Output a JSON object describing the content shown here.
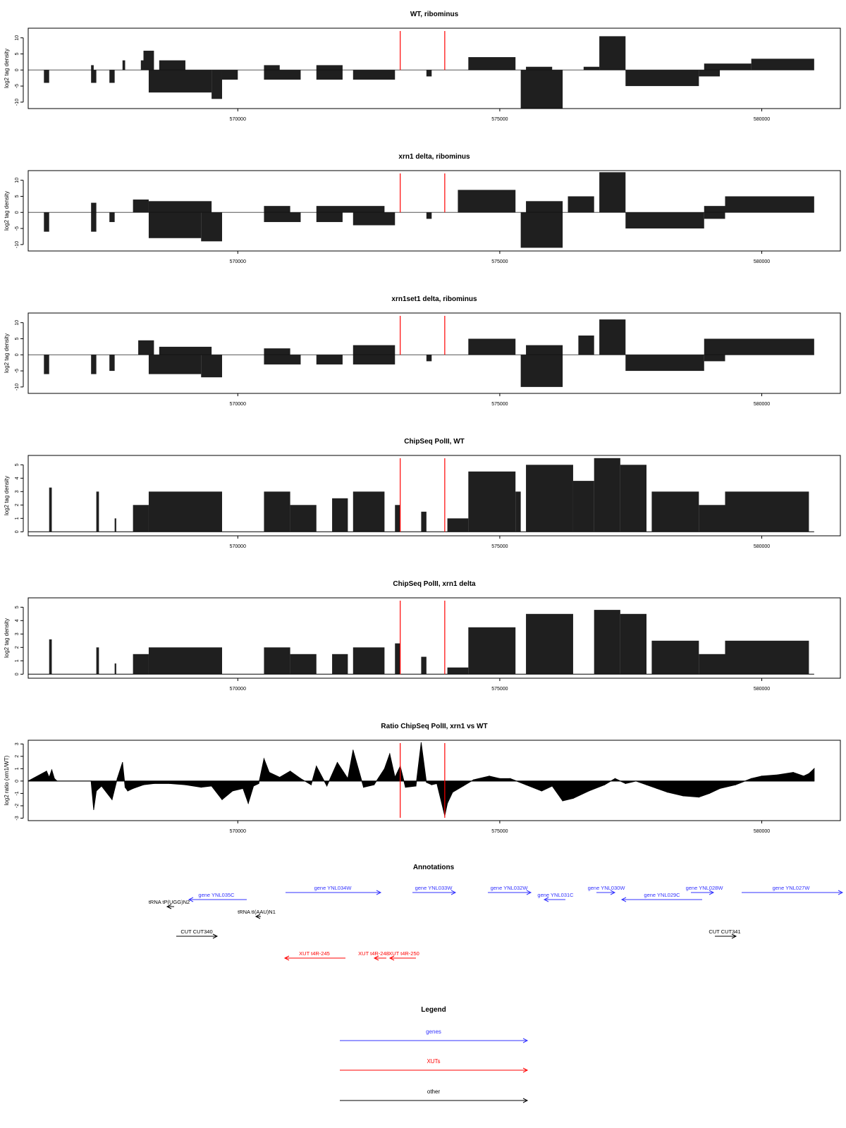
{
  "chart_data": [
    {
      "type": "bar",
      "title": "WT, ribominus",
      "ylabel": "log2 tag density",
      "xlim": [
        566000,
        581500
      ],
      "ylim": [
        -12,
        13
      ],
      "yticks": [
        -10,
        -5,
        0,
        5,
        10
      ],
      "xticks": [
        570000,
        575000,
        580000
      ],
      "xtick_labels": [
        "570000",
        "575000",
        "580000"
      ],
      "markers": [
        573100,
        573950
      ],
      "plus_segments": [
        [
          567200,
          567250,
          1.5
        ],
        [
          567800,
          567850,
          3
        ],
        [
          568150,
          568200,
          3
        ],
        [
          568200,
          568400,
          6
        ],
        [
          568500,
          569000,
          3
        ],
        [
          570500,
          570800,
          1.5
        ],
        [
          571500,
          572000,
          1.5
        ],
        [
          574400,
          575300,
          4
        ],
        [
          575500,
          576000,
          1
        ],
        [
          576600,
          576900,
          1
        ],
        [
          576900,
          577400,
          10.5
        ],
        [
          578900,
          579800,
          2
        ],
        [
          579800,
          581000,
          3.5
        ]
      ],
      "minus_segments": [
        [
          566300,
          566400,
          -4
        ],
        [
          567200,
          567300,
          -4
        ],
        [
          567550,
          567650,
          -4
        ],
        [
          568300,
          569500,
          -7
        ],
        [
          569500,
          569700,
          -9
        ],
        [
          569700,
          570000,
          -3
        ],
        [
          570500,
          571200,
          -3
        ],
        [
          571500,
          572000,
          -3
        ],
        [
          572200,
          573000,
          -3
        ],
        [
          573600,
          573700,
          -2
        ],
        [
          575400,
          576200,
          -12
        ],
        [
          577400,
          578800,
          -5
        ],
        [
          578800,
          579200,
          -2
        ]
      ],
      "colors": {
        "series": "#000000",
        "marker": "#ff0000",
        "zero_line": "#555555"
      }
    },
    {
      "type": "bar",
      "title": "xrn1 delta, ribominus",
      "ylabel": "log2 tag density",
      "xlim": [
        566000,
        581500
      ],
      "ylim": [
        -12,
        13
      ],
      "yticks": [
        -10,
        -5,
        0,
        5,
        10
      ],
      "xticks": [
        570000,
        575000,
        580000
      ],
      "xtick_labels": [
        "570000",
        "575000",
        "580000"
      ],
      "markers": [
        573100,
        573950
      ],
      "plus_segments": [
        [
          567200,
          567300,
          3
        ],
        [
          568000,
          568300,
          4
        ],
        [
          568300,
          569500,
          3.5
        ],
        [
          570500,
          571000,
          2
        ],
        [
          571500,
          572800,
          2
        ],
        [
          574200,
          575300,
          7
        ],
        [
          575500,
          576200,
          3.5
        ],
        [
          576300,
          576800,
          5
        ],
        [
          576900,
          577400,
          12.5
        ],
        [
          578900,
          579300,
          2
        ],
        [
          579300,
          581000,
          5
        ]
      ],
      "minus_segments": [
        [
          566300,
          566400,
          -6
        ],
        [
          567200,
          567300,
          -6
        ],
        [
          567550,
          567650,
          -3
        ],
        [
          568300,
          569300,
          -8
        ],
        [
          569300,
          569700,
          -9
        ],
        [
          570500,
          571200,
          -3
        ],
        [
          571500,
          572000,
          -3
        ],
        [
          572200,
          573000,
          -4
        ],
        [
          573600,
          573700,
          -2
        ],
        [
          575400,
          576200,
          -11
        ],
        [
          577400,
          578900,
          -5
        ],
        [
          578900,
          579300,
          -2
        ]
      ],
      "colors": {
        "series": "#000000",
        "marker": "#ff0000",
        "zero_line": "#555555"
      }
    },
    {
      "type": "bar",
      "title": "xrn1set1 delta, ribominus",
      "ylabel": "log2 tag density",
      "xlim": [
        566000,
        581500
      ],
      "ylim": [
        -12,
        13
      ],
      "yticks": [
        -10,
        -5,
        0,
        5,
        10
      ],
      "xticks": [
        570000,
        575000,
        580000
      ],
      "xtick_labels": [
        "570000",
        "575000",
        "580000"
      ],
      "markers": [
        573100,
        573950
      ],
      "plus_segments": [
        [
          568100,
          568400,
          4.5
        ],
        [
          568500,
          569500,
          2.5
        ],
        [
          570500,
          571000,
          2
        ],
        [
          572200,
          573000,
          3
        ],
        [
          574400,
          575300,
          5
        ],
        [
          575500,
          576200,
          3
        ],
        [
          576500,
          576800,
          6
        ],
        [
          576900,
          577400,
          11
        ],
        [
          578900,
          581000,
          5
        ]
      ],
      "minus_segments": [
        [
          566300,
          566400,
          -6
        ],
        [
          567200,
          567300,
          -6
        ],
        [
          567550,
          567650,
          -5
        ],
        [
          568300,
          569300,
          -6
        ],
        [
          569300,
          569700,
          -7
        ],
        [
          570500,
          571200,
          -3
        ],
        [
          571500,
          572000,
          -3
        ],
        [
          572200,
          573000,
          -3
        ],
        [
          573600,
          573700,
          -2
        ],
        [
          575400,
          576200,
          -10
        ],
        [
          577400,
          578900,
          -5
        ],
        [
          578900,
          579300,
          -2
        ]
      ],
      "colors": {
        "series": "#000000",
        "marker": "#ff0000",
        "zero_line": "#555555"
      }
    },
    {
      "type": "bar",
      "title": "ChipSeq PolII, WT",
      "ylabel": "log2 tag density",
      "xlim": [
        566000,
        581500
      ],
      "ylim": [
        -0.3,
        5.7
      ],
      "yticks": [
        0,
        1,
        2,
        3,
        4,
        5
      ],
      "xticks": [
        570000,
        575000,
        580000
      ],
      "xtick_labels": [
        "570000",
        "575000",
        "580000"
      ],
      "markers": [
        573100,
        573950
      ],
      "plus_segments": [
        [
          566400,
          566450,
          3.3
        ],
        [
          567300,
          567350,
          3
        ],
        [
          567650,
          567680,
          1
        ],
        [
          568000,
          568300,
          2
        ],
        [
          568300,
          569700,
          3
        ],
        [
          570500,
          571000,
          3
        ],
        [
          571000,
          571500,
          2
        ],
        [
          571800,
          572100,
          2.5
        ],
        [
          572200,
          572800,
          3
        ],
        [
          573000,
          573100,
          2
        ],
        [
          573500,
          573600,
          1.5
        ],
        [
          574000,
          574400,
          1
        ],
        [
          574400,
          575300,
          4.5
        ],
        [
          575300,
          575400,
          3
        ],
        [
          575500,
          576400,
          5
        ],
        [
          576400,
          576800,
          3.8
        ],
        [
          576800,
          577300,
          5.5
        ],
        [
          577300,
          577800,
          5
        ],
        [
          577900,
          578800,
          3
        ],
        [
          578800,
          579300,
          2
        ],
        [
          579300,
          580900,
          3
        ]
      ],
      "minus_segments": [],
      "colors": {
        "series": "#000000",
        "marker": "#ff0000",
        "zero_line": "#000000"
      }
    },
    {
      "type": "bar",
      "title": "ChipSeq PolII, xrn1 delta",
      "ylabel": "log2 tag density",
      "xlim": [
        566000,
        581500
      ],
      "ylim": [
        -0.3,
        5.7
      ],
      "yticks": [
        0,
        1,
        2,
        3,
        4,
        5
      ],
      "xticks": [
        570000,
        575000,
        580000
      ],
      "xtick_labels": [
        "570000",
        "575000",
        "580000"
      ],
      "markers": [
        573100,
        573950
      ],
      "plus_segments": [
        [
          566400,
          566450,
          2.6
        ],
        [
          567300,
          567350,
          2
        ],
        [
          567650,
          567680,
          0.8
        ],
        [
          568000,
          568300,
          1.5
        ],
        [
          568300,
          569700,
          2
        ],
        [
          570500,
          571000,
          2
        ],
        [
          571000,
          571500,
          1.5
        ],
        [
          571800,
          572100,
          1.5
        ],
        [
          572200,
          572800,
          2
        ],
        [
          573000,
          573100,
          2.3
        ],
        [
          573500,
          573600,
          1.3
        ],
        [
          574000,
          574400,
          0.5
        ],
        [
          574400,
          575300,
          3.5
        ],
        [
          575500,
          576400,
          4.5
        ],
        [
          576800,
          577300,
          4.8
        ],
        [
          577300,
          577800,
          4.5
        ],
        [
          577900,
          578800,
          2.5
        ],
        [
          578800,
          579300,
          1.5
        ],
        [
          579300,
          580900,
          2.5
        ]
      ],
      "minus_segments": [],
      "colors": {
        "series": "#000000",
        "marker": "#ff0000",
        "zero_line": "#000000"
      }
    },
    {
      "type": "line",
      "title": "Ratio ChipSeq PolII, xrn1 vs WT",
      "ylabel": "log2 ratio (xrn1/WT)",
      "xlim": [
        566000,
        581500
      ],
      "ylim": [
        -3.2,
        3.3
      ],
      "yticks": [
        -3,
        -2,
        -1,
        0,
        1,
        2,
        3
      ],
      "xticks": [
        570000,
        575000,
        580000
      ],
      "xtick_labels": [
        "570000",
        "575000",
        "580000"
      ],
      "markers": [
        573100,
        573950
      ],
      "x": [
        566000,
        566350,
        566400,
        566450,
        566500,
        566550,
        567200,
        567250,
        567300,
        567400,
        567600,
        567700,
        567800,
        567850,
        567900,
        568000,
        568200,
        568400,
        568700,
        569000,
        569300,
        569500,
        569700,
        569900,
        570100,
        570200,
        570300,
        570400,
        570500,
        570600,
        570800,
        571000,
        571200,
        571400,
        571500,
        571700,
        571900,
        572100,
        572200,
        572400,
        572600,
        572800,
        572900,
        573000,
        573100,
        573200,
        573400,
        573500,
        573600,
        573700,
        573800,
        573950,
        574000,
        574100,
        574300,
        574500,
        574800,
        575000,
        575200,
        575500,
        575800,
        576000,
        576200,
        576400,
        576700,
        577000,
        577200,
        577400,
        577600,
        577800,
        578000,
        578200,
        578500,
        578800,
        579000,
        579200,
        579500,
        579800,
        580000,
        580300,
        580600,
        580800,
        580900,
        581000
      ],
      "y": [
        0,
        0.8,
        0.3,
        0.9,
        0.2,
        0,
        0,
        -2.3,
        -0.8,
        -0.4,
        -1.5,
        0.2,
        1.5,
        -0.5,
        -0.8,
        -0.6,
        -0.3,
        -0.2,
        -0.2,
        -0.3,
        -0.5,
        -0.4,
        -1.5,
        -0.8,
        -0.6,
        -1.8,
        -0.4,
        -0.2,
        1.8,
        0.7,
        0.3,
        0.8,
        0.2,
        -0.3,
        1.2,
        -0.4,
        1.5,
        0.2,
        2.5,
        -0.5,
        -0.3,
        1,
        2.2,
        0.3,
        1.2,
        -0.5,
        -0.4,
        3.1,
        -0.1,
        -0.3,
        -0.2,
        -2.8,
        -1.8,
        -0.9,
        -0.4,
        0.1,
        0.4,
        0.2,
        0.2,
        -0.3,
        -0.8,
        -0.4,
        -1.6,
        -1.4,
        -0.8,
        -0.3,
        0.2,
        -0.2,
        0,
        -0.3,
        -0.6,
        -0.9,
        -1.2,
        -1.3,
        -1,
        -0.6,
        -0.3,
        0.2,
        0.4,
        0.5,
        0.7,
        0.4,
        0.6,
        1
      ],
      "colors": {
        "series": "#000000",
        "marker": "#ff0000",
        "zero_line": "#000000"
      }
    }
  ],
  "annotations": {
    "title": "Annotations",
    "colors": {
      "genes": "#3333ff",
      "xuts": "#ff0000",
      "other": "#000000"
    },
    "features": [
      {
        "label": "gene YNL035C",
        "category": "genes",
        "strand": "-"
      },
      {
        "label": "gene YNL034W",
        "category": "genes",
        "strand": "+"
      },
      {
        "label": "gene YNL033W",
        "category": "genes",
        "strand": "+"
      },
      {
        "label": "gene YNL032W",
        "category": "genes",
        "strand": "+"
      },
      {
        "label": "gene YNL031C",
        "category": "genes",
        "strand": "-"
      },
      {
        "label": "gene YNL030W",
        "category": "genes",
        "strand": "+"
      },
      {
        "label": "gene YNL029C",
        "category": "genes",
        "strand": "-"
      },
      {
        "label": "gene YNL028W",
        "category": "genes",
        "strand": "+"
      },
      {
        "label": "gene YNL027W",
        "category": "genes",
        "strand": "+"
      },
      {
        "label": "tRNA tP(UGG)N2",
        "category": "other",
        "strand": "-"
      },
      {
        "label": "tRNA tI(AAU)N1",
        "category": "other",
        "strand": "-"
      },
      {
        "label": "CUT CUT340",
        "category": "other",
        "strand": "+"
      },
      {
        "label": "CUT CUT341",
        "category": "other",
        "strand": "+"
      },
      {
        "label": "XUT t4R-245",
        "category": "xuts",
        "strand": "-"
      },
      {
        "label": "XUT t4R-248",
        "category": "xuts",
        "strand": "-"
      },
      {
        "label": "XUT t4R-250",
        "category": "xuts",
        "strand": "-"
      }
    ]
  },
  "legend": {
    "title": "Legend",
    "items": [
      {
        "label": "genes",
        "color": "#3333ff"
      },
      {
        "label": "XUTs",
        "color": "#ff0000"
      },
      {
        "label": "other",
        "color": "#000000"
      }
    ]
  }
}
